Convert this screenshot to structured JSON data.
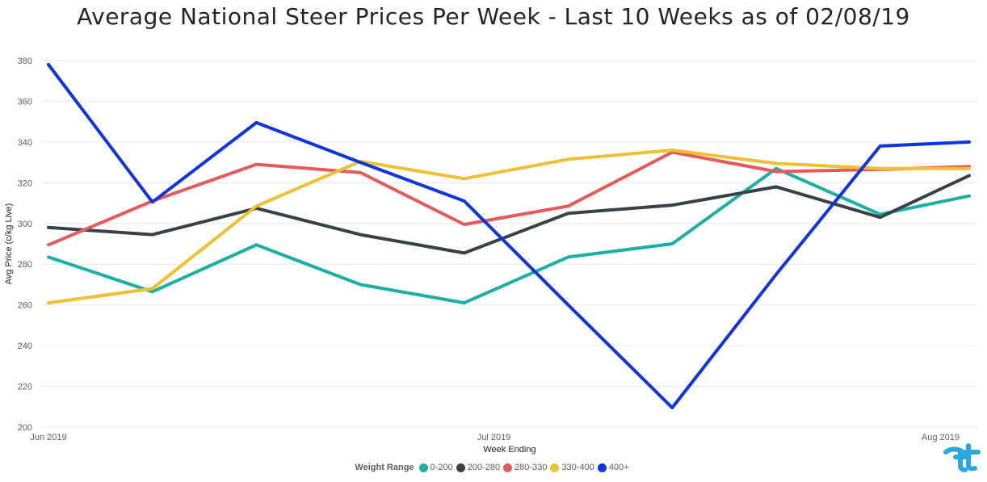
{
  "chart_data": {
    "type": "line",
    "title": "Average National Steer Prices Per Week - Last 10 Weeks as of 02/08/19",
    "xlabel": "Week Ending",
    "ylabel": "Avg Price (c/kg Live)",
    "ylim": [
      200,
      380
    ],
    "y_ticks": [
      200,
      220,
      240,
      260,
      280,
      300,
      320,
      340,
      360,
      380
    ],
    "x_tick_labels": [
      {
        "label": "Jun 2019",
        "date": "2019-06-01"
      },
      {
        "label": "Jul 2019",
        "date": "2019-07-01"
      },
      {
        "label": "Aug 2019",
        "date": "2019-08-01"
      }
    ],
    "x": [
      "2019-06-01",
      "2019-06-08",
      "2019-06-15",
      "2019-06-22",
      "2019-06-29",
      "2019-07-06",
      "2019-07-13",
      "2019-07-20",
      "2019-07-27",
      "2019-08-02"
    ],
    "grid": true,
    "legend": {
      "title": "Weight Range",
      "position": "bottom"
    },
    "series": [
      {
        "name": "0-200",
        "color": "#1ab0a3",
        "values": [
          283.5,
          266.5,
          289.5,
          270,
          261,
          283.5,
          290,
          327,
          304.5,
          313.5
        ]
      },
      {
        "name": "200-280",
        "color": "#374246",
        "values": [
          298,
          294.5,
          307.5,
          294.5,
          285.5,
          305,
          309,
          318,
          303,
          323.5
        ]
      },
      {
        "name": "280-330",
        "color": "#e8595b",
        "values": [
          289.5,
          311,
          329,
          325,
          299.5,
          308.5,
          335,
          325.5,
          326.5,
          328
        ]
      },
      {
        "name": "330-400",
        "color": "#eec032",
        "values": [
          261,
          268,
          308.5,
          330.5,
          322,
          331.5,
          336,
          329.5,
          327,
          327
        ]
      },
      {
        "name": "400+",
        "color": "#1035e0",
        "values": [
          378,
          310.5,
          349.5,
          330,
          311,
          260,
          209.5,
          275,
          338,
          340
        ]
      }
    ]
  }
}
